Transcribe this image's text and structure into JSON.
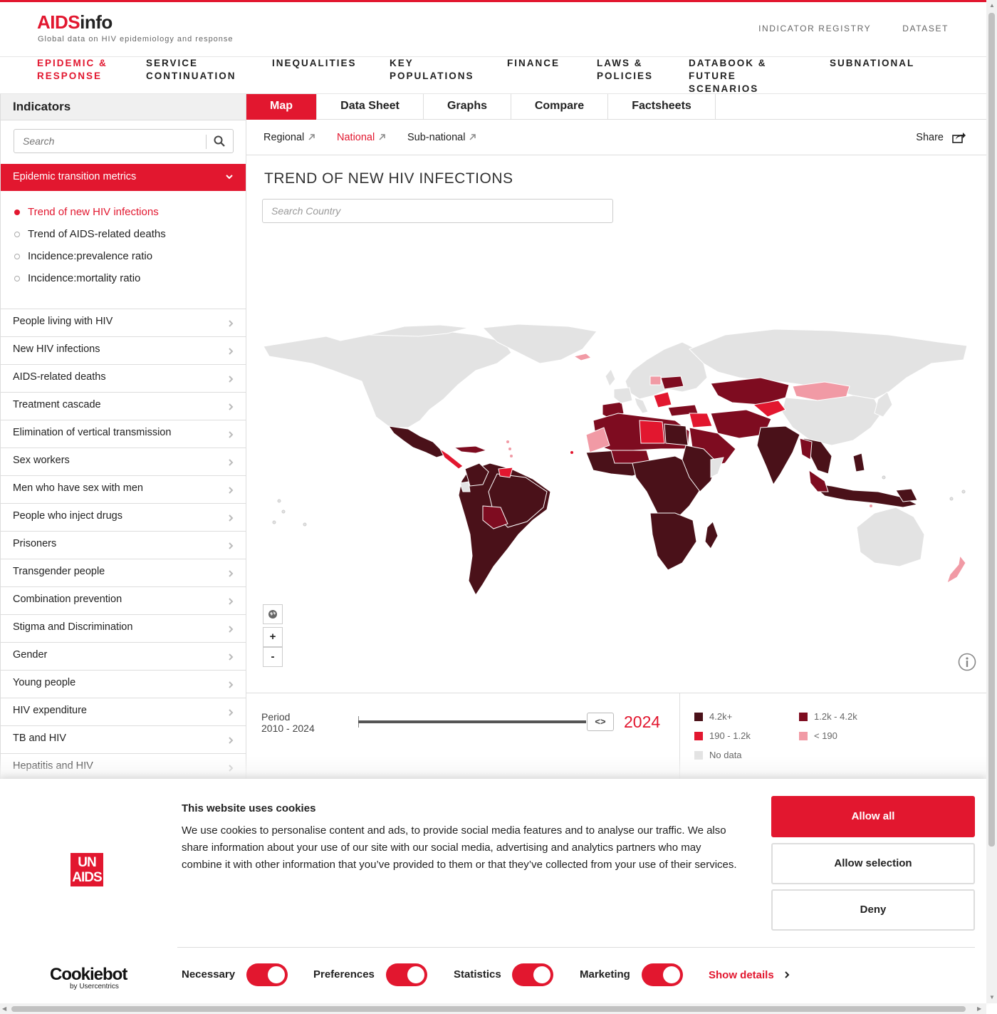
{
  "brand": {
    "logo_red": "AIDS",
    "logo_dark": "info",
    "tagline": "Global data on HIV epidemiology and response",
    "accent": "#e2172f"
  },
  "top_links": [
    "INDICATOR REGISTRY",
    "DATASET"
  ],
  "main_nav": [
    {
      "label": "EPIDEMIC &\nRESPONSE",
      "active": true
    },
    {
      "label": "SERVICE\nCONTINUATION"
    },
    {
      "label": "INEQUALITIES"
    },
    {
      "label": "KEY\nPOPULATIONS"
    },
    {
      "label": "FINANCE"
    },
    {
      "label": "LAWS &\nPOLICIES"
    },
    {
      "label": "DATABOOK &\nFUTURE\nSCENARIOS"
    },
    {
      "label": "SUBNATIONAL"
    }
  ],
  "sidebar": {
    "title": "Indicators",
    "search_placeholder": "Search",
    "open_category": "Epidemic transition metrics",
    "sub_items": [
      {
        "label": "Trend of new HIV infections",
        "active": true
      },
      {
        "label": "Trend of AIDS-related deaths"
      },
      {
        "label": "Incidence:prevalence ratio"
      },
      {
        "label": "Incidence:mortality ratio"
      }
    ],
    "categories": [
      "People living with HIV",
      "New HIV infections",
      "AIDS-related deaths",
      "Treatment cascade",
      "Elimination of vertical transmission",
      "Sex workers",
      "Men who have sex with men",
      "People who inject drugs",
      "Prisoners",
      "Transgender people",
      "Combination prevention",
      "Stigma and Discrimination",
      "Gender",
      "Young people",
      "HIV expenditure",
      "TB and HIV",
      "Hepatitis and HIV"
    ]
  },
  "tabs": [
    {
      "label": "Map",
      "active": true
    },
    {
      "label": "Data Sheet"
    },
    {
      "label": "Graphs"
    },
    {
      "label": "Compare"
    },
    {
      "label": "Factsheets"
    }
  ],
  "sub_tabs": [
    {
      "label": "Regional"
    },
    {
      "label": "National",
      "active": true
    },
    {
      "label": "Sub-national"
    }
  ],
  "share_label": "Share",
  "map": {
    "title": "TREND OF NEW HIV INFECTIONS",
    "country_search_placeholder": "Search Country",
    "zoom_in": "+",
    "zoom_out": "-"
  },
  "period": {
    "label": "Period",
    "range": "2010 - 2024",
    "selected_year": "2024",
    "handle": "<>"
  },
  "legend": [
    {
      "label": "4.2k+",
      "color": "#4a1119"
    },
    {
      "label": "1.2k - 4.2k",
      "color": "#7e0c20"
    },
    {
      "label": "190 - 1.2k",
      "color": "#e2172f"
    },
    {
      "label": "< 190",
      "color": "#f19aa5"
    },
    {
      "label": "No data",
      "color": "#e3e3e3"
    }
  ],
  "cookie": {
    "title": "This website uses cookies",
    "body": "We use cookies to personalise content and ads, to provide social media features and to analyse our traffic. We also share information about your use of our site with our social media, advertising and analytics partners who may combine it with other information that you’ve provided to them or that they’ve collected from your use of their services.",
    "logo_line1": "UN",
    "logo_line2": "AIDS",
    "buttons": {
      "allow_all": "Allow all",
      "allow_selection": "Allow selection",
      "deny": "Deny"
    },
    "toggles": [
      "Necessary",
      "Preferences",
      "Statistics",
      "Marketing"
    ],
    "show_details": "Show details",
    "cookiebot": "Cookiebot",
    "cookiebot_by": "by Usercentrics"
  }
}
